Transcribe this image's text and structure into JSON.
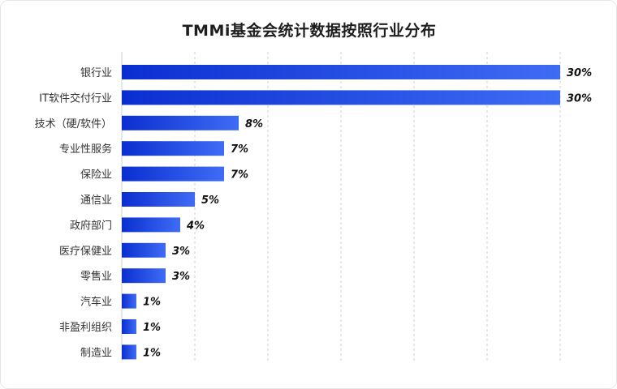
{
  "chart_data": {
    "type": "bar",
    "orientation": "horizontal",
    "title": "TMMi基金会统计数据按照行业分布",
    "xlabel": "",
    "ylabel": "",
    "xlim": [
      0,
      30
    ],
    "grid": true,
    "value_suffix": "%",
    "categories": [
      "银行业",
      "IT软件交付行业",
      "技术（硬/软件）",
      "专业性服务",
      "保险业",
      "通信业",
      "政府部门",
      "医疗保健业",
      "零售业",
      "汽车业",
      "非盈利组织",
      "制造业"
    ],
    "values": [
      30,
      30,
      8,
      7,
      7,
      5,
      4,
      3,
      3,
      1,
      1,
      1
    ],
    "value_labels": [
      "30%",
      "30%",
      "8%",
      "7%",
      "7%",
      "5%",
      "4%",
      "3%",
      "3%",
      "1%",
      "1%",
      "1%"
    ],
    "colors": {
      "bar_start": "#0a2fd0",
      "bar_end": "#3f6cf5",
      "grid": "#cfcfcf"
    }
  }
}
